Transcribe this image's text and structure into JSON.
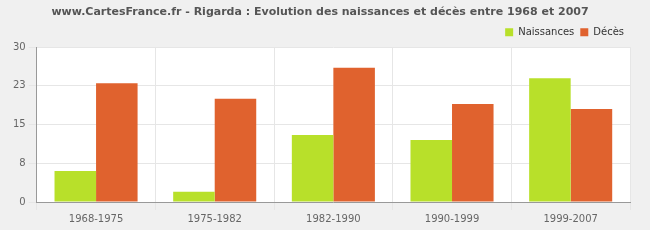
{
  "chart_data": {
    "type": "bar",
    "title": "www.CartesFrance.fr - Rigarda : Evolution des naissances et décès entre 1968 et 2007",
    "categories": [
      "1968-1975",
      "1975-1982",
      "1982-1990",
      "1990-1999",
      "1999-2007"
    ],
    "series": [
      {
        "name": "Naissances",
        "color": "#b8e02a",
        "values": [
          6,
          2,
          13,
          12,
          24
        ]
      },
      {
        "name": "Décès",
        "color": "#e0622e",
        "values": [
          23,
          20,
          26,
          19,
          18
        ]
      }
    ],
    "ylim": [
      0,
      30
    ],
    "yticks": [
      0,
      {
        "value": 7.5,
        "label": "8"
      },
      15,
      {
        "value": 22.5,
        "label": "23"
      },
      30
    ],
    "grid": true,
    "legend": "top-right"
  }
}
